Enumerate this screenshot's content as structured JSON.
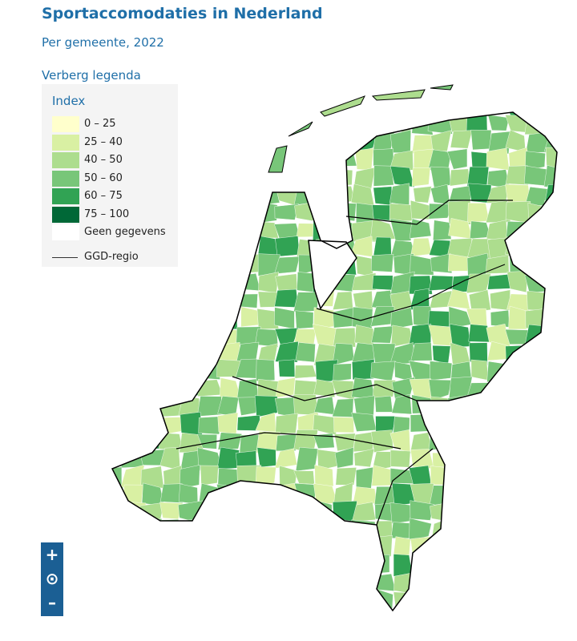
{
  "header": {
    "title": "Sportaccomodaties in Nederland",
    "subtitle": "Per gemeente, 2022"
  },
  "legend_toggle": "Verberg legenda",
  "legend": {
    "title": "Index",
    "items": [
      {
        "label": "0 – 25",
        "color": "#ffffcc"
      },
      {
        "label": "25 – 40",
        "color": "#d9f0a3"
      },
      {
        "label": "40 – 50",
        "color": "#addd8e"
      },
      {
        "label": "50 – 60",
        "color": "#78c679"
      },
      {
        "label": "60 – 75",
        "color": "#31a354"
      },
      {
        "label": "75 – 100",
        "color": "#006837"
      },
      {
        "label": "Geen gegevens",
        "color": "#ffffff"
      }
    ],
    "boundary": "GGD-regio"
  },
  "zoom_controls": [
    "+",
    "⊙",
    "–"
  ]
}
